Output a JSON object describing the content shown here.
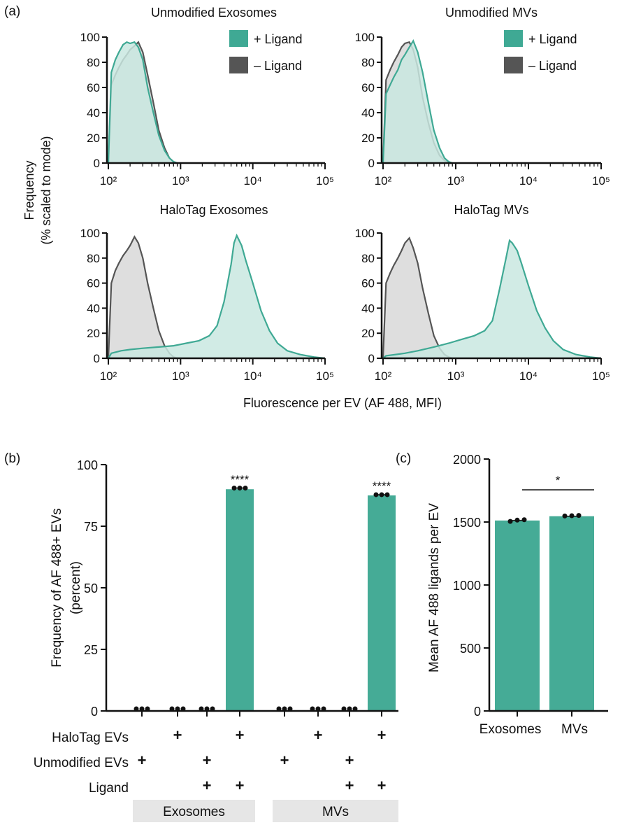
{
  "panel_labels": {
    "a": "(a)",
    "b": "(b)",
    "c": "(c)"
  },
  "colors": {
    "ligand_plus": "#3fa994",
    "ligand_minus": "#555555",
    "fill_minus": "#d3d3d3",
    "fill_plus": "#c9e8e0",
    "band": "#e6e6e6"
  },
  "chart_data": [
    {
      "id": "hist-unmod-exo",
      "type": "area",
      "title": "Unmodified Exosomes",
      "xscale": "log",
      "xlim": [
        100,
        100000
      ],
      "ylim": [
        0,
        100
      ],
      "yticks": [
        0,
        20,
        40,
        60,
        80,
        100
      ],
      "xticks": [
        "10²",
        "10³",
        "10⁴",
        "10⁵"
      ],
      "legend": {
        "placement": "top-right",
        "entries": [
          "+ Ligand",
          "– Ligand"
        ]
      },
      "series": [
        {
          "name": "+ Ligand",
          "x": [
            100,
            110,
            125,
            140,
            160,
            180,
            200,
            230,
            260,
            300,
            350,
            420,
            500,
            600,
            700,
            800,
            900
          ],
          "y": [
            0,
            72,
            82,
            88,
            94,
            96,
            95,
            96,
            92,
            82,
            60,
            40,
            22,
            10,
            4,
            1,
            0
          ]
        },
        {
          "name": "– Ligand",
          "x": [
            100,
            110,
            125,
            140,
            160,
            180,
            200,
            230,
            260,
            300,
            350,
            420,
            500,
            600,
            700,
            800,
            900
          ],
          "y": [
            0,
            62,
            70,
            76,
            82,
            86,
            90,
            93,
            96,
            88,
            70,
            48,
            26,
            12,
            4,
            1,
            0
          ]
        }
      ]
    },
    {
      "id": "hist-unmod-mv",
      "type": "area",
      "title": "Unmodified MVs",
      "xscale": "log",
      "xlim": [
        100,
        100000
      ],
      "ylim": [
        0,
        100
      ],
      "yticks": [
        0,
        20,
        40,
        60,
        80,
        100
      ],
      "xticks": [
        "10²",
        "10³",
        "10⁴",
        "10⁵"
      ],
      "legend": {
        "placement": "top-right",
        "entries": [
          "+ Ligand",
          "– Ligand"
        ]
      },
      "series": [
        {
          "name": "+ Ligand",
          "x": [
            100,
            110,
            125,
            140,
            160,
            180,
            200,
            230,
            260,
            300,
            350,
            420,
            500,
            600,
            700,
            800,
            900
          ],
          "y": [
            0,
            55,
            62,
            68,
            74,
            82,
            86,
            92,
            97,
            88,
            72,
            48,
            26,
            12,
            4,
            1,
            0
          ]
        },
        {
          "name": "– Ligand",
          "x": [
            100,
            110,
            125,
            140,
            160,
            180,
            200,
            230,
            260,
            300,
            350,
            420,
            500,
            600,
            700,
            800,
            900
          ],
          "y": [
            0,
            66,
            74,
            80,
            86,
            92,
            95,
            96,
            90,
            76,
            52,
            32,
            16,
            6,
            2,
            0,
            0
          ]
        }
      ]
    },
    {
      "id": "hist-halo-exo",
      "type": "area",
      "title": "HaloTag Exosomes",
      "xscale": "log",
      "xlim": [
        100,
        100000
      ],
      "ylim": [
        0,
        100
      ],
      "yticks": [
        0,
        20,
        40,
        60,
        80,
        100
      ],
      "xticks": [
        "10²",
        "10³",
        "10⁴",
        "10⁵"
      ],
      "series": [
        {
          "name": "+ Ligand",
          "x": [
            100,
            110,
            150,
            200,
            300,
            500,
            800,
            1200,
            1800,
            2500,
            3200,
            4000,
            5000,
            5500,
            6000,
            7000,
            8000,
            10000,
            13000,
            17000,
            22000,
            30000,
            45000,
            70000,
            100000
          ],
          "y": [
            0,
            4,
            6,
            7,
            8,
            9,
            10,
            12,
            14,
            18,
            26,
            45,
            75,
            92,
            98,
            90,
            78,
            60,
            38,
            22,
            12,
            6,
            3,
            1,
            0
          ]
        },
        {
          "name": "– Ligand",
          "x": [
            100,
            110,
            125,
            140,
            160,
            180,
            200,
            230,
            260,
            300,
            350,
            420,
            500,
            600,
            700,
            800,
            900
          ],
          "y": [
            0,
            60,
            70,
            76,
            82,
            86,
            90,
            97,
            92,
            80,
            60,
            40,
            22,
            10,
            4,
            1,
            0
          ]
        }
      ]
    },
    {
      "id": "hist-halo-mv",
      "type": "area",
      "title": "HaloTag MVs",
      "xscale": "log",
      "xlim": [
        100,
        100000
      ],
      "ylim": [
        0,
        100
      ],
      "yticks": [
        0,
        20,
        40,
        60,
        80,
        100
      ],
      "xticks": [
        "10²",
        "10³",
        "10⁴",
        "10⁵"
      ],
      "series": [
        {
          "name": "+ Ligand",
          "x": [
            100,
            110,
            150,
            200,
            300,
            500,
            800,
            1200,
            1800,
            2500,
            3200,
            4000,
            5000,
            5500,
            6000,
            7000,
            8000,
            10000,
            13000,
            17000,
            22000,
            30000,
            45000,
            70000,
            100000
          ],
          "y": [
            0,
            2,
            3,
            4,
            6,
            9,
            12,
            15,
            18,
            22,
            30,
            55,
            82,
            94,
            92,
            86,
            76,
            58,
            38,
            24,
            14,
            7,
            3,
            1,
            0
          ]
        },
        {
          "name": "– Ligand",
          "x": [
            100,
            110,
            125,
            140,
            160,
            180,
            200,
            230,
            260,
            300,
            350,
            420,
            500,
            600,
            700,
            800,
            900
          ],
          "y": [
            0,
            60,
            68,
            74,
            80,
            86,
            92,
            96,
            88,
            76,
            56,
            36,
            18,
            8,
            3,
            1,
            0
          ]
        }
      ]
    },
    {
      "id": "bar-frequency",
      "type": "bar",
      "ylabel": "Frequency of AF 488+ EVs",
      "ylabel2": "(percent)",
      "ylim": [
        0,
        100
      ],
      "yticks": [
        0,
        25,
        50,
        75,
        100
      ],
      "bar_color": "#45ab96",
      "values": [
        0.3,
        0.3,
        0.3,
        90,
        0.3,
        0.3,
        0.3,
        87.5
      ],
      "points": [
        [
          0.3,
          0.3,
          0.3
        ],
        [
          0.3,
          0.3,
          0.3
        ],
        [
          0.3,
          0.3,
          0.3
        ],
        [
          90.5,
          90.5,
          90.5
        ],
        [
          0.3,
          0.3,
          0.3
        ],
        [
          0.3,
          0.3,
          0.3
        ],
        [
          0.3,
          0.3,
          0.3
        ],
        [
          87.8,
          87.8,
          87.8
        ]
      ],
      "significance": [
        "",
        "",
        "",
        "****",
        "",
        "",
        "",
        "****"
      ],
      "condition_rows": [
        {
          "label": "HaloTag EVs",
          "marks": [
            "",
            "+",
            "",
            "+",
            "",
            "+",
            "",
            "+"
          ]
        },
        {
          "label": "Unmodified EVs",
          "marks": [
            "+",
            "",
            "+",
            "",
            "+",
            "",
            "+",
            ""
          ]
        },
        {
          "label": "Ligand",
          "marks": [
            "",
            "",
            "+",
            "+",
            "",
            "",
            "+",
            "+"
          ]
        }
      ],
      "groups": [
        "Exosomes",
        "MVs"
      ]
    },
    {
      "id": "bar-ligands",
      "type": "bar",
      "ylabel": "Mean AF 488 ligands per EV",
      "ylim": [
        0,
        2000
      ],
      "yticks": [
        0,
        500,
        1000,
        1500,
        2000
      ],
      "bar_color": "#45ab96",
      "categories": [
        "Exosomes",
        "MVs"
      ],
      "values": [
        1512,
        1546
      ],
      "points": [
        [
          1505,
          1515,
          1518
        ],
        [
          1548,
          1550,
          1552
        ]
      ],
      "significance_bracket": "*"
    }
  ],
  "shared_labels": {
    "hist_ylabel_1": "Frequency",
    "hist_ylabel_2": "(% scaled to mode)",
    "hist_xlabel": "Fluorescence per EV (AF 488, MFI)"
  }
}
